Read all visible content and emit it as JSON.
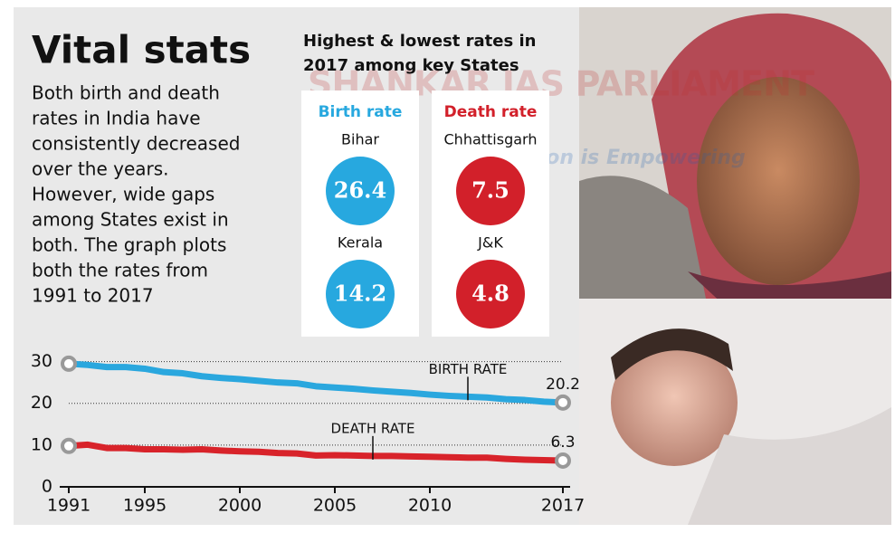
{
  "title": "Vital stats",
  "description": [
    "Both birth and death",
    "rates in India have",
    "consistently decreased",
    "over the years.",
    "However, wide gaps",
    "among States exist in",
    "both. The graph plots",
    "both the rates from",
    "1991 to 2017"
  ],
  "watermark": [
    "SHANKAR IAS PARLIAMENT",
    "Information is Empowering"
  ],
  "states_panel": {
    "heading": [
      "Highest & lowest rates in",
      "2017 among key States"
    ],
    "columns": [
      {
        "header": "Birth rate",
        "color": "#27a8df",
        "entries": [
          {
            "state": "Bihar",
            "value": "26.4"
          },
          {
            "state": "Kerala",
            "value": "14.2"
          }
        ]
      },
      {
        "header": "Death rate",
        "color": "#d2202a",
        "entries": [
          {
            "state": "Chhattisgarh",
            "value": "7.5"
          },
          {
            "state": "J&K",
            "value": "4.8"
          }
        ]
      }
    ]
  },
  "chart_data": {
    "type": "line",
    "x": [
      1991,
      1992,
      1993,
      1994,
      1995,
      1996,
      1997,
      1998,
      1999,
      2000,
      2001,
      2002,
      2003,
      2004,
      2005,
      2006,
      2007,
      2008,
      2009,
      2010,
      2011,
      2012,
      2013,
      2014,
      2015,
      2016,
      2017
    ],
    "series": [
      {
        "name": "BIRTH RATE",
        "color": "#2aa7de",
        "values": [
          29.5,
          29.2,
          28.7,
          28.7,
          28.3,
          27.5,
          27.2,
          26.5,
          26.1,
          25.8,
          25.4,
          25.0,
          24.8,
          24.1,
          23.8,
          23.5,
          23.1,
          22.8,
          22.5,
          22.1,
          21.8,
          21.6,
          21.4,
          21.0,
          20.8,
          20.4,
          20.2
        ]
      },
      {
        "name": "DEATH RATE",
        "color": "#d8232a",
        "values": [
          9.8,
          10.1,
          9.3,
          9.3,
          9.0,
          9.0,
          8.9,
          9.0,
          8.7,
          8.5,
          8.4,
          8.1,
          8.0,
          7.5,
          7.6,
          7.5,
          7.4,
          7.4,
          7.3,
          7.2,
          7.1,
          7.0,
          7.0,
          6.7,
          6.5,
          6.4,
          6.3
        ]
      }
    ],
    "xlim": [
      1991,
      2017
    ],
    "xticks": [
      1991,
      1995,
      2000,
      2005,
      2010,
      2017
    ],
    "ylim": [
      0,
      31
    ],
    "yticks": [
      0,
      10,
      20,
      30
    ],
    "grid": true
  }
}
